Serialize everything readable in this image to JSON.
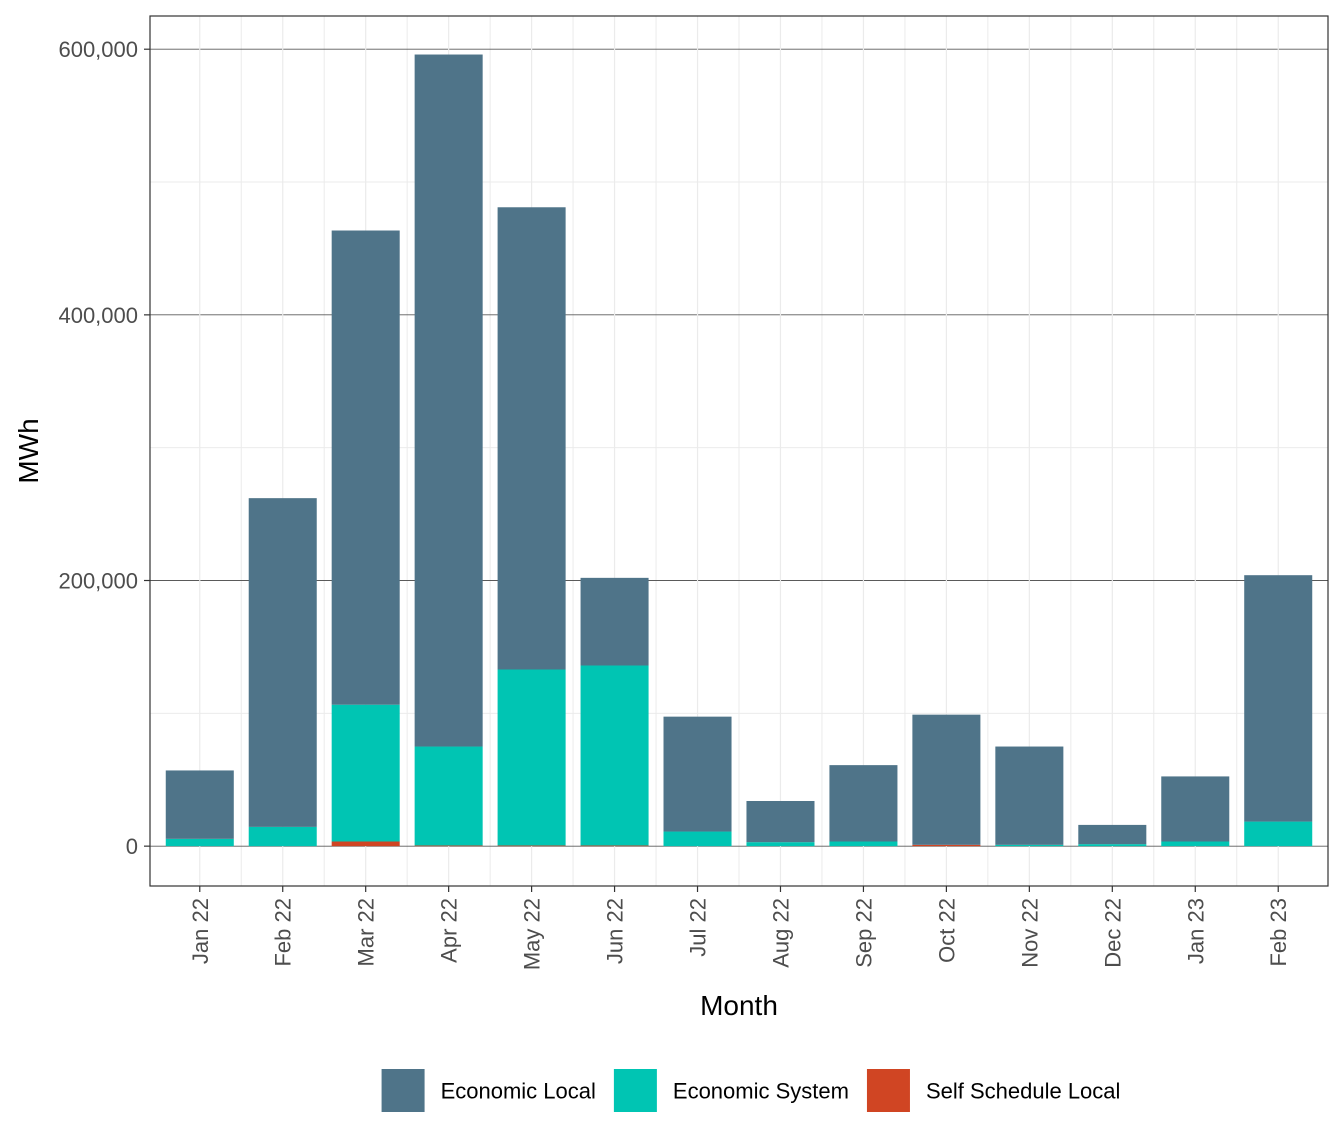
{
  "chart_data": {
    "type": "bar",
    "stacked": true,
    "title": "",
    "xlabel": "Month",
    "ylabel": "MWh",
    "ylim": [
      -30000,
      625000
    ],
    "yticks": [
      0,
      200000,
      400000,
      600000
    ],
    "ytick_labels": [
      "0",
      "200,000",
      "400,000",
      "600,000"
    ],
    "grid": true,
    "legend_position": "bottom",
    "categories": [
      "Jan 22",
      "Feb 22",
      "Mar 22",
      "Apr 22",
      "May 22",
      "Jun 22",
      "Jul 22",
      "Aug 22",
      "Sep 22",
      "Oct 22",
      "Nov 22",
      "Dec 22",
      "Jan 23",
      "Feb 23"
    ],
    "series": [
      {
        "name": "Self Schedule Local",
        "color": "#d04523",
        "values": [
          0,
          0,
          3500,
          500,
          500,
          500,
          0,
          0,
          0,
          1000,
          0,
          0,
          0,
          0
        ]
      },
      {
        "name": "Economic System",
        "color": "#00c5b3",
        "values": [
          5500,
          14500,
          103000,
          74500,
          132500,
          135500,
          11000,
          3000,
          3500,
          0,
          1000,
          1500,
          3500,
          18500
        ]
      },
      {
        "name": "Economic Local",
        "color": "#4f7489",
        "values": [
          51500,
          247500,
          357000,
          521000,
          348000,
          66000,
          86500,
          31000,
          57500,
          98000,
          74000,
          14500,
          49000,
          185500
        ]
      }
    ],
    "legend": {
      "entries": [
        {
          "label": "Economic Local",
          "color": "#4f7489"
        },
        {
          "label": "Economic System",
          "color": "#00c5b3"
        },
        {
          "label": "Self Schedule Local",
          "color": "#d04523"
        }
      ]
    }
  }
}
